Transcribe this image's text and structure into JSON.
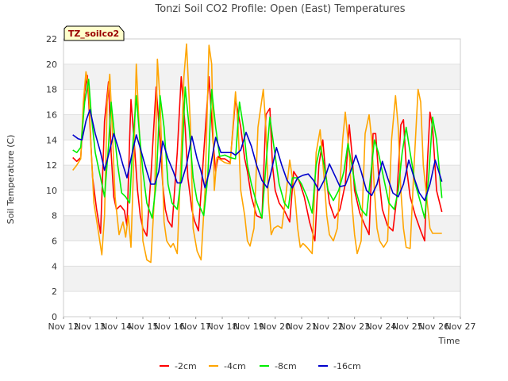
{
  "chart_data": {
    "type": "line",
    "title": "Tonzi Soil CO2 Profile: Open (East) Temperatures",
    "xlabel": "Time",
    "ylabel": "Soil Temperature (C)",
    "badge": "TZ_soilco2",
    "ylim": [
      0,
      22
    ],
    "yticks": [
      0,
      2,
      4,
      6,
      8,
      10,
      12,
      14,
      16,
      18,
      20,
      22
    ],
    "xlim": [
      0,
      15
    ],
    "xticks": [
      {
        "value": 0,
        "label": "Nov 12"
      },
      {
        "value": 1,
        "label": "Nov 13"
      },
      {
        "value": 2,
        "label": "Nov 14"
      },
      {
        "value": 3,
        "label": "Nov 15"
      },
      {
        "value": 4,
        "label": "Nov 16"
      },
      {
        "value": 5,
        "label": "Nov 17"
      },
      {
        "value": 6,
        "label": "Nov 18"
      },
      {
        "value": 7,
        "label": "Nov 19"
      },
      {
        "value": 8,
        "label": "Nov 20"
      },
      {
        "value": 9,
        "label": "Nov 21"
      },
      {
        "value": 10,
        "label": "Nov 22"
      },
      {
        "value": 11,
        "label": "Nov 23"
      },
      {
        "value": 12,
        "label": "Nov 24"
      },
      {
        "value": 13,
        "label": "Nov 25"
      },
      {
        "value": 14,
        "label": "Nov 26"
      },
      {
        "value": 15,
        "label": "Nov 27"
      }
    ],
    "grid": "horizontal bands",
    "legend_position": "bottom",
    "series": [
      {
        "name": "-2cm",
        "color": "#ff0000",
        "x": [
          0.35,
          0.5,
          0.65,
          0.8,
          0.9,
          1.0,
          1.1,
          1.25,
          1.4,
          1.55,
          1.7,
          1.8,
          1.9,
          2.0,
          2.15,
          2.3,
          2.4,
          2.5,
          2.55,
          2.65,
          2.8,
          2.9,
          3.0,
          3.15,
          3.3,
          3.5,
          3.65,
          3.75,
          3.85,
          3.95,
          4.1,
          4.3,
          4.45,
          4.6,
          4.7,
          4.85,
          4.95,
          5.1,
          5.3,
          5.5,
          5.65,
          5.75,
          5.85,
          5.95,
          6.1,
          6.3,
          6.5,
          6.7,
          6.85,
          6.95,
          7.1,
          7.3,
          7.5,
          7.65,
          7.8,
          7.9,
          8.0,
          8.15,
          8.35,
          8.55,
          8.7,
          8.85,
          8.95,
          9.1,
          9.3,
          9.5,
          9.65,
          9.8,
          9.9,
          10.05,
          10.25,
          10.45,
          10.65,
          10.8,
          10.9,
          11.0,
          11.2,
          11.4,
          11.55,
          11.7,
          11.8,
          11.9,
          12.05,
          12.25,
          12.45,
          12.6,
          12.75,
          12.85,
          12.95,
          13.1,
          13.3,
          13.5,
          13.65,
          13.75,
          13.85,
          13.95,
          14.1,
          14.3
        ],
        "values": [
          12.6,
          12.3,
          12.6,
          17.8,
          19.1,
          15.2,
          11.0,
          8.5,
          6.6,
          15.5,
          18.6,
          13.0,
          9.5,
          8.5,
          8.8,
          8.4,
          7.2,
          14.0,
          17.2,
          14.5,
          10.0,
          8.0,
          7.0,
          6.4,
          11.0,
          18.2,
          14.0,
          10.5,
          8.5,
          7.6,
          7.1,
          13.0,
          19.0,
          15.0,
          11.0,
          8.5,
          7.6,
          6.8,
          13.0,
          19.0,
          14.0,
          11.5,
          12.7,
          12.5,
          12.5,
          12.2,
          17.3,
          15.0,
          12.5,
          11.5,
          9.5,
          8.0,
          7.8,
          16.0,
          16.5,
          12.0,
          10.0,
          9.0,
          8.4,
          7.5,
          11.5,
          11.0,
          10.5,
          9.5,
          7.5,
          6.0,
          12.0,
          14.0,
          11.5,
          9.0,
          7.8,
          8.5,
          10.5,
          15.2,
          13.0,
          10.0,
          8.2,
          7.2,
          6.5,
          14.5,
          14.5,
          11.5,
          8.5,
          7.2,
          6.8,
          9.5,
          15.2,
          15.6,
          12.0,
          9.5,
          8.0,
          6.8,
          6.0,
          12.0,
          16.2,
          15.0,
          10.0,
          8.3
        ]
      },
      {
        "name": "-4cm",
        "color": "#ffa500",
        "x": [
          0.35,
          0.5,
          0.65,
          0.75,
          0.85,
          0.95,
          1.05,
          1.15,
          1.3,
          1.45,
          1.55,
          1.65,
          1.75,
          1.85,
          1.95,
          2.1,
          2.25,
          2.35,
          2.45,
          2.55,
          2.65,
          2.75,
          2.9,
          3.0,
          3.15,
          3.3,
          3.45,
          3.55,
          3.65,
          3.8,
          3.9,
          4.05,
          4.15,
          4.3,
          4.45,
          4.55,
          4.65,
          4.8,
          4.9,
          5.05,
          5.2,
          5.35,
          5.5,
          5.6,
          5.7,
          5.8,
          5.95,
          6.1,
          6.3,
          6.5,
          6.6,
          6.7,
          6.85,
          6.95,
          7.05,
          7.2,
          7.35,
          7.55,
          7.65,
          7.75,
          7.85,
          7.95,
          8.1,
          8.25,
          8.4,
          8.55,
          8.65,
          8.75,
          8.85,
          8.95,
          9.05,
          9.2,
          9.4,
          9.55,
          9.7,
          9.85,
          9.95,
          10.05,
          10.2,
          10.35,
          10.55,
          10.65,
          10.8,
          10.9,
          11.0,
          11.1,
          11.25,
          11.4,
          11.55,
          11.65,
          11.75,
          11.85,
          11.95,
          12.1,
          12.25,
          12.4,
          12.55,
          12.65,
          12.75,
          12.85,
          12.95,
          13.1,
          13.25,
          13.4,
          13.5,
          13.6,
          13.75,
          13.85,
          13.95,
          14.1,
          14.3
        ],
        "values": [
          11.6,
          12.0,
          12.5,
          17.0,
          19.4,
          18.0,
          13.0,
          9.0,
          7.0,
          4.9,
          8.0,
          17.0,
          19.2,
          14.5,
          9.5,
          6.5,
          7.5,
          6.3,
          8.0,
          5.5,
          12.0,
          20.0,
          13.0,
          6.0,
          4.5,
          4.3,
          10.0,
          20.4,
          17.0,
          7.5,
          6.0,
          5.5,
          5.8,
          5.0,
          13.0,
          19.0,
          21.6,
          15.0,
          7.0,
          5.2,
          4.5,
          10.0,
          21.5,
          20.0,
          10.0,
          12.6,
          12.4,
          12.2,
          12.1,
          17.8,
          15.0,
          10.0,
          8.0,
          6.0,
          5.6,
          7.0,
          15.0,
          18.0,
          15.0,
          9.0,
          6.5,
          7.0,
          7.2,
          7.0,
          9.5,
          12.4,
          11.0,
          9.5,
          7.0,
          5.5,
          5.8,
          5.5,
          5.0,
          13.0,
          14.8,
          11.0,
          8.0,
          6.5,
          6.0,
          7.0,
          14.0,
          16.2,
          13.0,
          9.0,
          6.5,
          5.0,
          6.0,
          14.5,
          16.0,
          14.0,
          10.0,
          7.0,
          6.0,
          5.5,
          6.0,
          14.0,
          17.5,
          15.0,
          10.0,
          7.0,
          5.5,
          5.4,
          12.0,
          18.0,
          17.0,
          12.0,
          9.0,
          7.0,
          6.6,
          6.6,
          6.6
        ]
      },
      {
        "name": "-8cm",
        "color": "#00ee00",
        "x": [
          0.35,
          0.5,
          0.65,
          0.8,
          0.95,
          1.05,
          1.2,
          1.4,
          1.55,
          1.7,
          1.8,
          1.9,
          2.05,
          2.2,
          2.35,
          2.5,
          2.6,
          2.75,
          2.85,
          3.0,
          3.15,
          3.35,
          3.5,
          3.65,
          3.8,
          3.95,
          4.1,
          4.3,
          4.45,
          4.6,
          4.75,
          4.9,
          5.05,
          5.3,
          5.45,
          5.6,
          5.75,
          5.9,
          6.1,
          6.3,
          6.5,
          6.65,
          6.8,
          6.95,
          7.1,
          7.3,
          7.5,
          7.65,
          7.8,
          7.95,
          8.15,
          8.35,
          8.5,
          8.65,
          8.85,
          9.0,
          9.2,
          9.4,
          9.55,
          9.7,
          9.85,
          10.0,
          10.2,
          10.4,
          10.6,
          10.75,
          10.9,
          11.05,
          11.25,
          11.45,
          11.6,
          11.75,
          11.9,
          12.1,
          12.3,
          12.5,
          12.65,
          12.8,
          12.95,
          13.1,
          13.3,
          13.5,
          13.65,
          13.8,
          13.95,
          14.1,
          14.3
        ],
        "values": [
          13.2,
          13.0,
          13.4,
          17.0,
          18.8,
          16.0,
          13.0,
          11.0,
          9.5,
          13.5,
          17.0,
          15.0,
          12.0,
          9.8,
          9.5,
          9.0,
          13.0,
          17.5,
          15.0,
          11.5,
          9.0,
          7.8,
          10.5,
          17.5,
          15.0,
          10.5,
          9.0,
          8.5,
          11.0,
          18.2,
          15.0,
          11.0,
          9.2,
          8.0,
          11.0,
          18.0,
          15.0,
          12.7,
          12.8,
          12.6,
          12.5,
          17.0,
          15.0,
          12.0,
          10.5,
          9.0,
          7.8,
          12.0,
          15.8,
          13.5,
          10.5,
          9.0,
          8.6,
          11.0,
          11.0,
          10.5,
          9.5,
          8.2,
          12.0,
          13.5,
          12.0,
          10.0,
          9.2,
          10.0,
          11.5,
          13.7,
          12.0,
          10.0,
          8.5,
          8.0,
          11.0,
          14.0,
          13.0,
          11.0,
          9.0,
          8.5,
          10.0,
          13.0,
          15.0,
          13.0,
          10.5,
          9.0,
          7.8,
          11.0,
          15.8,
          14.0,
          9.4
        ]
      },
      {
        "name": "-16cm",
        "color": "#0000cc",
        "x": [
          0.35,
          0.55,
          0.7,
          0.85,
          1.0,
          1.2,
          1.4,
          1.55,
          1.7,
          1.9,
          2.05,
          2.25,
          2.4,
          2.55,
          2.75,
          2.95,
          3.15,
          3.3,
          3.45,
          3.6,
          3.75,
          3.95,
          4.15,
          4.3,
          4.45,
          4.65,
          4.85,
          5.05,
          5.2,
          5.35,
          5.55,
          5.75,
          5.95,
          6.15,
          6.35,
          6.5,
          6.7,
          6.9,
          7.1,
          7.3,
          7.5,
          7.7,
          7.85,
          8.05,
          8.25,
          8.45,
          8.65,
          8.85,
          9.05,
          9.25,
          9.45,
          9.65,
          9.85,
          10.05,
          10.25,
          10.45,
          10.65,
          10.85,
          11.05,
          11.25,
          11.45,
          11.65,
          11.85,
          12.05,
          12.25,
          12.45,
          12.65,
          12.85,
          13.05,
          13.25,
          13.45,
          13.65,
          13.85,
          14.05,
          14.3
        ],
        "values": [
          14.4,
          14.1,
          14.0,
          15.5,
          16.4,
          14.5,
          13.0,
          11.6,
          12.8,
          14.5,
          13.5,
          12.0,
          11.0,
          12.5,
          14.4,
          13.0,
          11.5,
          10.5,
          10.5,
          11.5,
          13.9,
          12.5,
          11.5,
          10.6,
          10.6,
          12.0,
          14.3,
          12.5,
          11.5,
          10.2,
          11.8,
          14.2,
          13.0,
          13.0,
          13.0,
          12.8,
          13.2,
          14.6,
          13.5,
          12.0,
          10.8,
          10.2,
          11.5,
          13.4,
          12.0,
          10.8,
          10.2,
          11.0,
          11.2,
          11.3,
          10.8,
          10.0,
          10.8,
          12.1,
          11.2,
          10.3,
          10.4,
          11.5,
          12.8,
          11.5,
          10.0,
          9.6,
          10.5,
          12.3,
          11.0,
          9.8,
          9.5,
          10.5,
          12.4,
          11.0,
          9.8,
          9.2,
          10.5,
          12.4,
          10.7
        ]
      }
    ]
  }
}
